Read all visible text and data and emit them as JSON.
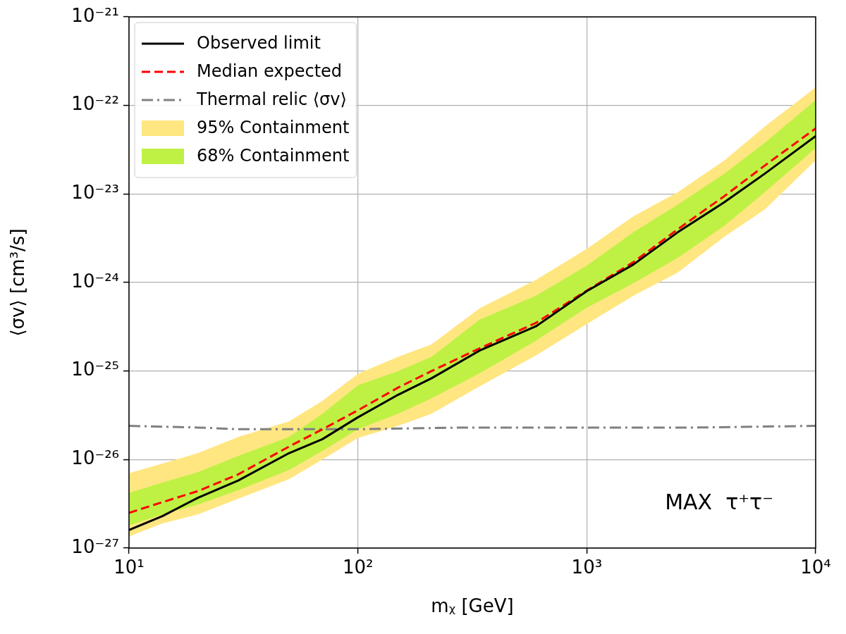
{
  "chart_data": {
    "type": "line",
    "xlabel": "mᵪ [GeV]",
    "ylabel": "⟨σv⟩ [cm³/s]",
    "log": "xy",
    "grid": true,
    "legend": "top left",
    "xlim": [
      10,
      10000
    ],
    "xticks": [
      {
        "value": 10,
        "label": "10¹"
      },
      {
        "value": 100,
        "label": "10²"
      },
      {
        "value": 1000,
        "label": "10³"
      },
      {
        "value": 10000,
        "label": "10⁴"
      }
    ],
    "ylim": [
      1e-27,
      1e-21
    ],
    "yticks": [
      {
        "value": 1e-27,
        "label": "10⁻²⁷"
      },
      {
        "value": 1e-26,
        "label": "10⁻²⁶"
      },
      {
        "value": 1e-25,
        "label": "10⁻²⁵"
      },
      {
        "value": 1e-24,
        "label": "10⁻²⁴"
      },
      {
        "value": 1e-23,
        "label": "10⁻²³"
      },
      {
        "value": 1e-22,
        "label": "10⁻²²"
      },
      {
        "value": 1e-21,
        "label": "10⁻²¹"
      }
    ],
    "x": [
      10,
      14,
      20,
      30,
      50,
      70,
      100,
      150,
      210,
      340,
      600,
      1000,
      1600,
      2500,
      4000,
      6000,
      10000
    ],
    "annotations": [
      "MAX  τ⁺τ⁻"
    ],
    "series": [
      {
        "name": "Observed limit",
        "type": "line",
        "color": "#000000",
        "line_style": "solid",
        "values": [
          1.6e-27,
          2.3e-27,
          3.7e-27,
          5.8e-27,
          1.18e-26,
          1.7e-26,
          3e-26,
          5.4e-26,
          8.3e-26,
          1.7e-25,
          3.2e-25,
          8e-25,
          1.6e-24,
          3.7e-24,
          8.1e-24,
          1.7e-23,
          4.5e-23
        ]
      },
      {
        "name": "Median expected",
        "type": "line",
        "color": "#ff0000",
        "line_style": "dashed",
        "values": [
          2.5e-27,
          3.3e-27,
          4.4e-27,
          6.8e-27,
          1.4e-26,
          2.2e-26,
          3.6e-26,
          6.5e-26,
          1e-25,
          1.8e-25,
          3.5e-25,
          8.1e-25,
          1.7e-24,
          4e-24,
          9.5e-24,
          2.1e-23,
          5.5e-23
        ]
      },
      {
        "name": "Thermal relic ⟨σv⟩",
        "type": "line",
        "color": "#808080",
        "line_style": "dashdot",
        "x": [
          10,
          20,
          30,
          100,
          300,
          1000,
          3000,
          10000
        ],
        "values": [
          2.4e-26,
          2.3e-26,
          2.2e-26,
          2.2e-26,
          2.3e-26,
          2.3e-26,
          2.3e-26,
          2.4e-26
        ]
      },
      {
        "name": "95% Containment",
        "type": "line",
        "color": "#ffe680",
        "values": [
          null,
          null,
          null,
          null,
          null,
          null,
          null,
          null,
          null,
          null,
          null,
          null,
          null,
          null,
          null,
          null,
          null
        ],
        "lower": [
          1.35e-27,
          1.9e-27,
          2.4e-27,
          3.6e-27,
          6e-27,
          1e-26,
          1.75e-26,
          2.4e-26,
          3.3e-26,
          6.7e-26,
          1.5e-25,
          3.4e-25,
          7.1e-25,
          1.3e-24,
          3.3e-24,
          6.7e-24,
          2.4e-23
        ],
        "upper": [
          7e-27,
          9e-27,
          1.18e-26,
          1.8e-26,
          2.7e-26,
          4.6e-26,
          9.3e-26,
          1.45e-25,
          2e-25,
          5.1e-25,
          1.07e-24,
          2.4e-24,
          5.6e-24,
          1.05e-23,
          2.4e-23,
          5.8e-23,
          1.6e-22
        ]
      },
      {
        "name": "68% Containment",
        "type": "line",
        "color": "#bff145",
        "values": [
          null,
          null,
          null,
          null,
          null,
          null,
          null,
          null,
          null,
          null,
          null,
          null,
          null,
          null,
          null,
          null,
          null
        ],
        "lower": [
          1.8e-27,
          2.4e-27,
          3.1e-27,
          4.5e-27,
          7.6e-27,
          1.25e-26,
          2.2e-26,
          3.3e-26,
          4.9e-26,
          9.4e-26,
          2.2e-25,
          5.2e-25,
          9.8e-25,
          1.9e-24,
          4.4e-24,
          1.05e-23,
          3.3e-23
        ],
        "upper": [
          4.2e-27,
          5.5e-27,
          7.2e-27,
          1.1e-26,
          1.8e-26,
          3.3e-26,
          6.9e-26,
          1e-25,
          1.45e-25,
          3.8e-25,
          7.1e-25,
          1.55e-24,
          3.7e-24,
          7.6e-24,
          1.7e-23,
          3.8e-23,
          1.15e-22
        ]
      }
    ]
  }
}
